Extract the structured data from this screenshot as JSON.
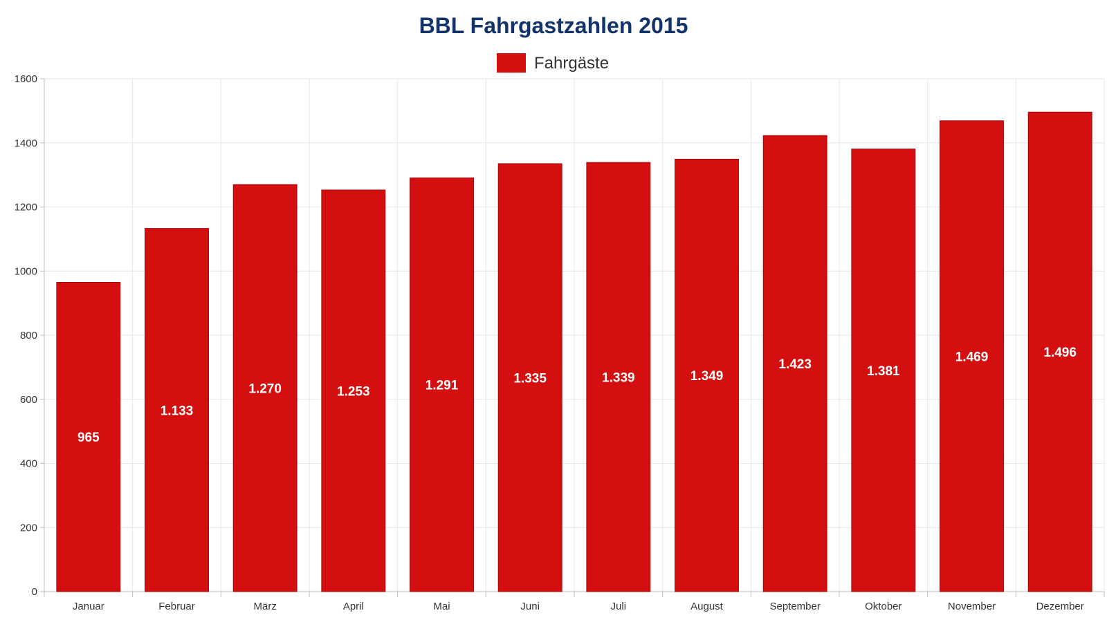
{
  "chart_data": {
    "type": "bar",
    "title": "BBL Fahrgastzahlen 2015",
    "xlabel": "",
    "ylabel": "",
    "categories": [
      "Januar",
      "Februar",
      "März",
      "April",
      "Mai",
      "Juni",
      "Juli",
      "August",
      "September",
      "Oktober",
      "November",
      "Dezember"
    ],
    "series": [
      {
        "name": "Fahrgäste",
        "color": "#d40f0f",
        "values": [
          965,
          1133,
          1270,
          1253,
          1291,
          1335,
          1339,
          1349,
          1423,
          1381,
          1469,
          1496
        ],
        "labels": [
          "965",
          "1.133",
          "1.270",
          "1.253",
          "1.291",
          "1.335",
          "1.339",
          "1.349",
          "1.423",
          "1.381",
          "1.469",
          "1.496"
        ]
      }
    ],
    "ylim": [
      0,
      1600
    ],
    "yticks": [
      "0",
      "200",
      "400",
      "600",
      "800",
      "1000",
      "1200",
      "1400",
      "1600"
    ],
    "grid": true,
    "legend": "top-center"
  },
  "colors": {
    "title": "#13336b",
    "bar": "#d40f0f",
    "bar_border": "#a10a0a"
  }
}
